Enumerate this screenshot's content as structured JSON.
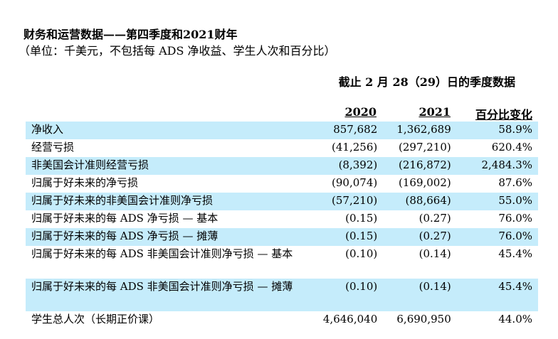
{
  "title": "财务和运营数据——第四季度和2021财年",
  "subtitle": "（单位：千美元，不包括每 ADS 净收益、学生人次和百分比）",
  "period_header": "截止 2 月 28（29）日的季度数据",
  "columns": [
    "2020",
    "2021",
    "百分比变化"
  ],
  "row_highlight_color": "#c5ecfb",
  "rows": [
    {
      "label": "净收入",
      "v2020": "857,682",
      "v2021": "1,362,689",
      "change": "58.9%"
    },
    {
      "label": "经营亏损",
      "v2020": "(41,256)",
      "v2021": "(297,210)",
      "change": "620.4%"
    },
    {
      "label": "非美国会计准则经营亏损",
      "v2020": "(8,392)",
      "v2021": "(216,872)",
      "change": "2,484.3%"
    },
    {
      "label": "归属于好未来的净亏损",
      "v2020": "(90,074)",
      "v2021": "(169,002)",
      "change": "87.6%"
    },
    {
      "label": "归属于好未来的非美国会计准则净亏损",
      "v2020": "(57,210)",
      "v2021": "(88,664)",
      "change": "55.0%"
    },
    {
      "label": "归属于好未来的每 ADS 净亏损 — 基本",
      "v2020": "(0.15)",
      "v2021": "(0.27)",
      "change": "76.0%"
    },
    {
      "label": "归属于好未来的每 ADS 净亏损 — 摊薄",
      "v2020": "(0.15)",
      "v2021": "(0.27)",
      "change": "76.0%"
    },
    {
      "label": "归属于好未来的每 ADS 非美国会计准则净亏损 — 基本",
      "v2020": "(0.10)",
      "v2021": "(0.14)",
      "change": "45.4%"
    },
    {
      "label": "归属于好未来的每 ADS 非美国会计准则净亏损 — 摊薄",
      "v2020": "(0.10)",
      "v2021": "(0.14)",
      "change": "45.4%"
    },
    {
      "label": "学生总人次（长期正价课）",
      "v2020": "4,646,040",
      "v2021": "6,690,950",
      "change": "44.0%"
    }
  ]
}
